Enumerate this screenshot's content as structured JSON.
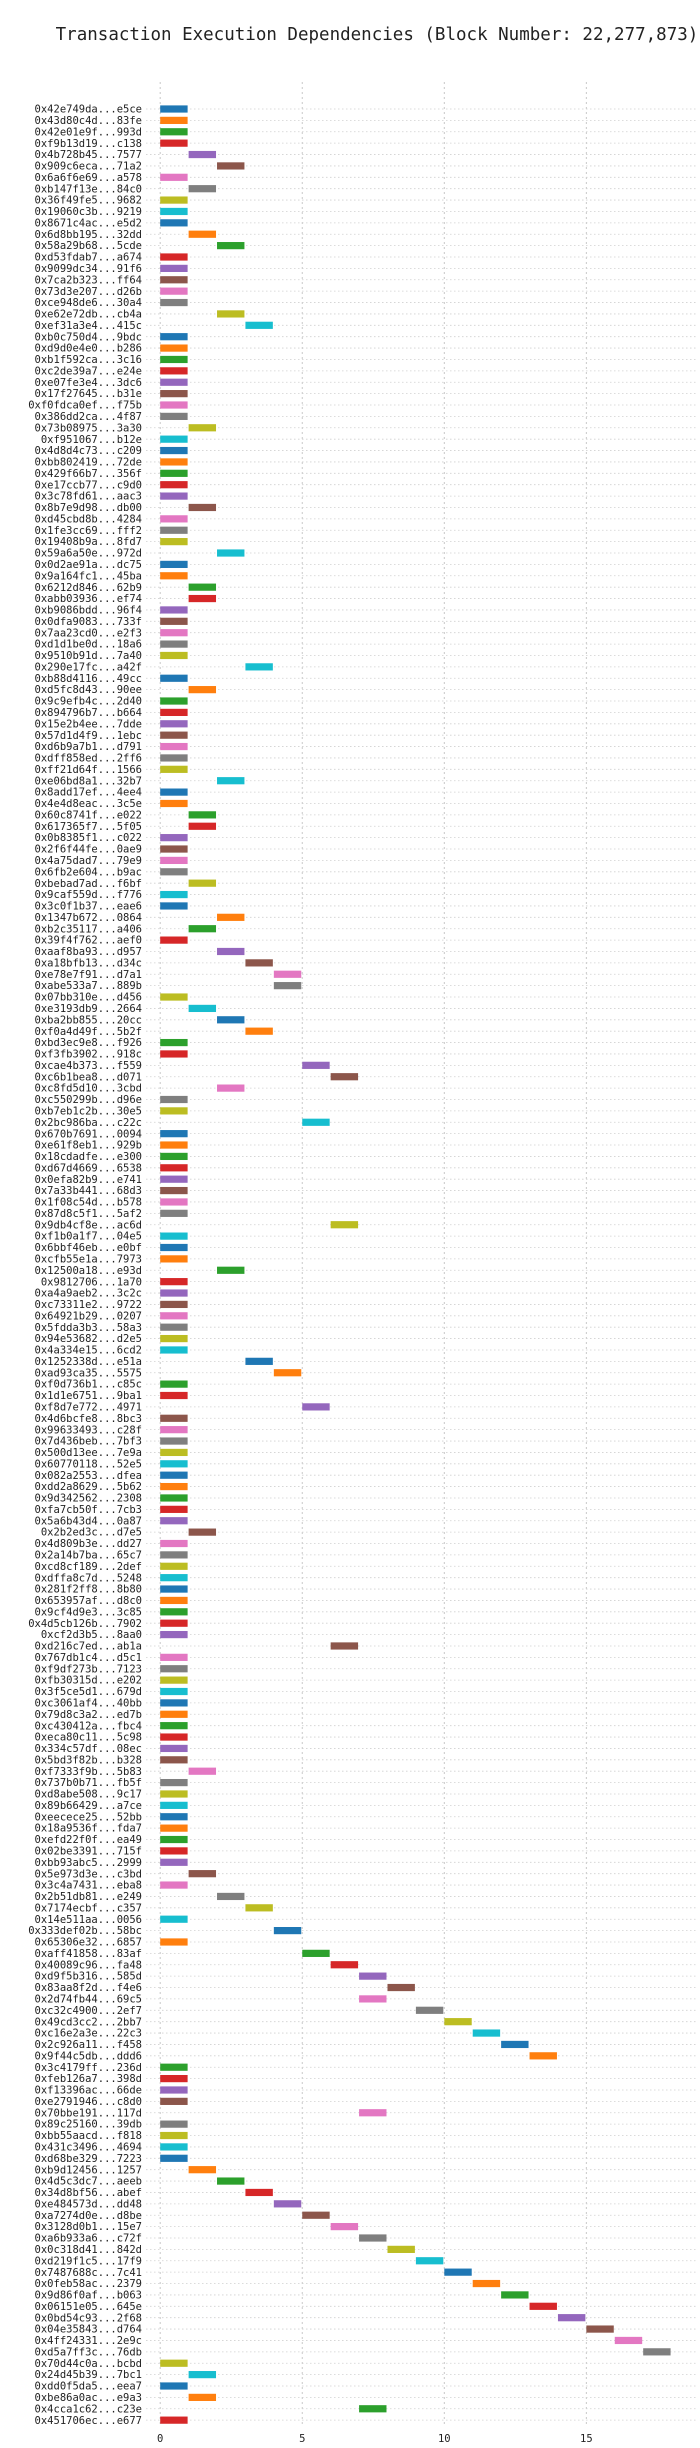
{
  "chart_data": {
    "type": "bar",
    "orientation": "horizontal",
    "title": "Transaction Execution Dependencies (Block Number: 22,277,873)",
    "xlabel": "",
    "ylabel": "",
    "xlim": [
      -0.5,
      19
    ],
    "xticks": [
      0,
      5,
      10,
      15
    ],
    "grid": true,
    "legend": "none",
    "bar_length": 1,
    "palette": [
      "#1f77b4",
      "#ff7f0e",
      "#2ca02c",
      "#d62728",
      "#9467bd",
      "#8c564b",
      "#e377c2",
      "#7f7f7f",
      "#bcbd22",
      "#17becf"
    ],
    "transactions": [
      {
        "label": "0x42e749da...e5ce",
        "x": 0
      },
      {
        "label": "0x43d80c4d...83fe",
        "x": 0
      },
      {
        "label": "0x42e01e9f...993d",
        "x": 0
      },
      {
        "label": "0xf9b13d19...c138",
        "x": 0
      },
      {
        "label": "0x4b728b45...7577",
        "x": 1
      },
      {
        "label": "0x909c6eca...71a2",
        "x": 2
      },
      {
        "label": "0x6a6f6e69...a578",
        "x": 0
      },
      {
        "label": "0xb147f13e...84c0",
        "x": 1
      },
      {
        "label": "0x36f49fe5...9682",
        "x": 0
      },
      {
        "label": "0x19060c3b...9219",
        "x": 0
      },
      {
        "label": "0x8671c4ac...e5d2",
        "x": 0
      },
      {
        "label": "0x6d8bb195...32dd",
        "x": 1
      },
      {
        "label": "0x58a29b68...5cde",
        "x": 2
      },
      {
        "label": "0xd53fdab7...a674",
        "x": 0
      },
      {
        "label": "0x9099dc34...91f6",
        "x": 0
      },
      {
        "label": "0x7ca2b323...ff64",
        "x": 0
      },
      {
        "label": "0x73d3e207...d26b",
        "x": 0
      },
      {
        "label": "0xce948de6...30a4",
        "x": 0
      },
      {
        "label": "0xe62e72db...cb4a",
        "x": 2
      },
      {
        "label": "0xef31a3e4...415c",
        "x": 3
      },
      {
        "label": "0xb0c750d4...9bdc",
        "x": 0
      },
      {
        "label": "0xd9d0e4e0...b286",
        "x": 0
      },
      {
        "label": "0xb1f592ca...3c16",
        "x": 0
      },
      {
        "label": "0xc2de39a7...e24e",
        "x": 0
      },
      {
        "label": "0xe07fe3e4...3dc6",
        "x": 0
      },
      {
        "label": "0x17f27645...b31e",
        "x": 0
      },
      {
        "label": "0xf0fdca0ef...f75b",
        "x": 0
      },
      {
        "label": "0x386dd2ca...4f87",
        "x": 0
      },
      {
        "label": "0x73b08975...3a30",
        "x": 1
      },
      {
        "label": "0xf951067...b12e",
        "x": 0
      },
      {
        "label": "0x4d8d4c73...c209",
        "x": 0
      },
      {
        "label": "0xbb802419...72de",
        "x": 0
      },
      {
        "label": "0x429f66b7...356f",
        "x": 0
      },
      {
        "label": "0xe17ccb77...c9d0",
        "x": 0
      },
      {
        "label": "0x3c78fd61...aac3",
        "x": 0
      },
      {
        "label": "0x8b7e9d98...db00",
        "x": 1
      },
      {
        "label": "0xd45cbd8b...4284",
        "x": 0
      },
      {
        "label": "0x1fe3cc69...fff2",
        "x": 0
      },
      {
        "label": "0x19408b9a...8fd7",
        "x": 0
      },
      {
        "label": "0x59a6a50e...972d",
        "x": 2
      },
      {
        "label": "0x0d2ae91a...dc75",
        "x": 0
      },
      {
        "label": "0x9a164fc1...45ba",
        "x": 0
      },
      {
        "label": "0x6212d846...62b9",
        "x": 1
      },
      {
        "label": "0xabb03936...ef74",
        "x": 1
      },
      {
        "label": "0xb9086bdd...96f4",
        "x": 0
      },
      {
        "label": "0x0dfa9083...733f",
        "x": 0
      },
      {
        "label": "0x7aa23cd0...e2f3",
        "x": 0
      },
      {
        "label": "0xd1d1be0d...18a6",
        "x": 0
      },
      {
        "label": "0x9510b91d...7a40",
        "x": 0
      },
      {
        "label": "0x290e17fc...a42f",
        "x": 3
      },
      {
        "label": "0xb88d4116...49cc",
        "x": 0
      },
      {
        "label": "0xd5fc8d43...90ee",
        "x": 1
      },
      {
        "label": "0x9c9efb4c...2d40",
        "x": 0
      },
      {
        "label": "0x894796b7...b664",
        "x": 0
      },
      {
        "label": "0x15e2b4ee...7dde",
        "x": 0
      },
      {
        "label": "0x57d1d4f9...1ebc",
        "x": 0
      },
      {
        "label": "0xd6b9a7b1...d791",
        "x": 0
      },
      {
        "label": "0xdff858ed...2ff6",
        "x": 0
      },
      {
        "label": "0xff21d64f...1566",
        "x": 0
      },
      {
        "label": "0xe06bd8a1...32b7",
        "x": 2
      },
      {
        "label": "0x8add17ef...4ee4",
        "x": 0
      },
      {
        "label": "0x4e4d8eac...3c5e",
        "x": 0
      },
      {
        "label": "0x60c8741f...e022",
        "x": 1
      },
      {
        "label": "0x617365f7...5f05",
        "x": 1
      },
      {
        "label": "0x0b8385f1...c022",
        "x": 0
      },
      {
        "label": "0x2f6f44fe...0ae9",
        "x": 0
      },
      {
        "label": "0x4a75dad7...79e9",
        "x": 0
      },
      {
        "label": "0x6fb2e604...b9ac",
        "x": 0
      },
      {
        "label": "0xbebad7ad...f6bf",
        "x": 1
      },
      {
        "label": "0x9caf559d...f776",
        "x": 0
      },
      {
        "label": "0x3c0f1b37...eae6",
        "x": 0
      },
      {
        "label": "0x1347b672...0864",
        "x": 2
      },
      {
        "label": "0xb2c35117...a406",
        "x": 1
      },
      {
        "label": "0x39f4f762...aef0",
        "x": 0
      },
      {
        "label": "0xaaf8ba93...d957",
        "x": 2
      },
      {
        "label": "0xa18bfb13...d34c",
        "x": 3
      },
      {
        "label": "0xe78e7f91...d7a1",
        "x": 4
      },
      {
        "label": "0xabe533a7...889b",
        "x": 4
      },
      {
        "label": "0x07bb310e...d456",
        "x": 0
      },
      {
        "label": "0xe3193db9...2664",
        "x": 1
      },
      {
        "label": "0xba2bb855...20cc",
        "x": 2
      },
      {
        "label": "0xf0a4d49f...5b2f",
        "x": 3
      },
      {
        "label": "0xbd3ec9e8...f926",
        "x": 0
      },
      {
        "label": "0xf3fb3902...918c",
        "x": 0
      },
      {
        "label": "0xcae4b373...f559",
        "x": 5
      },
      {
        "label": "0xc6b1bea8...d071",
        "x": 6
      },
      {
        "label": "0xc8fd5d10...3cbd",
        "x": 2
      },
      {
        "label": "0xc550299b...d96e",
        "x": 0
      },
      {
        "label": "0xb7eb1c2b...30e5",
        "x": 0
      },
      {
        "label": "0x2bc986ba...c22c",
        "x": 5
      },
      {
        "label": "0x670b7691...0094",
        "x": 0
      },
      {
        "label": "0xe61f8eb1...929b",
        "x": 0
      },
      {
        "label": "0x18cdadfe...e300",
        "x": 0
      },
      {
        "label": "0xd67d4669...6538",
        "x": 0
      },
      {
        "label": "0x0efa82b9...e741",
        "x": 0
      },
      {
        "label": "0x7a33b441...68d3",
        "x": 0
      },
      {
        "label": "0x1f08c54d...b578",
        "x": 0
      },
      {
        "label": "0x87d8c5f1...5af2",
        "x": 0
      },
      {
        "label": "0x9db4cf8e...ac6d",
        "x": 6
      },
      {
        "label": "0xf1b0a1f7...04e5",
        "x": 0
      },
      {
        "label": "0x6bbf46eb...e0bf",
        "x": 0
      },
      {
        "label": "0xcfb55e1a...7973",
        "x": 0
      },
      {
        "label": "0x12500a18...e93d",
        "x": 2
      },
      {
        "label": "0x9812706...1a70",
        "x": 0
      },
      {
        "label": "0xa4a9aeb2...3c2c",
        "x": 0
      },
      {
        "label": "0xc73311e2...9722",
        "x": 0
      },
      {
        "label": "0x64921b29...0207",
        "x": 0
      },
      {
        "label": "0x5fdda3b3...58a3",
        "x": 0
      },
      {
        "label": "0x94e53682...d2e5",
        "x": 0
      },
      {
        "label": "0x4a334e15...6cd2",
        "x": 0
      },
      {
        "label": "0x1252338d...e51a",
        "x": 3
      },
      {
        "label": "0xad93ca35...5575",
        "x": 4
      },
      {
        "label": "0xf0d736b1...c85c",
        "x": 0
      },
      {
        "label": "0x1d1e6751...9ba1",
        "x": 0
      },
      {
        "label": "0xf8d7e772...4971",
        "x": 5
      },
      {
        "label": "0x4d6bcfe8...8bc3",
        "x": 0
      },
      {
        "label": "0x99633493...c28f",
        "x": 0
      },
      {
        "label": "0x7d436beb...7bf3",
        "x": 0
      },
      {
        "label": "0x500d13ee...7e9a",
        "x": 0
      },
      {
        "label": "0x60770118...52e5",
        "x": 0
      },
      {
        "label": "0x082a2553...dfea",
        "x": 0
      },
      {
        "label": "0xdd2a8629...5b62",
        "x": 0
      },
      {
        "label": "0x9d342562...2308",
        "x": 0
      },
      {
        "label": "0xfa7cb50f...7cb3",
        "x": 0
      },
      {
        "label": "0x5a6b43d4...0a87",
        "x": 0
      },
      {
        "label": "0x2b2ed3c...d7e5",
        "x": 1
      },
      {
        "label": "0x4d809b3e...dd27",
        "x": 0
      },
      {
        "label": "0x2a14b7ba...65c7",
        "x": 0
      },
      {
        "label": "0xcd8cf189...2def",
        "x": 0
      },
      {
        "label": "0xdffa8c7d...5248",
        "x": 0
      },
      {
        "label": "0x281f2ff8...8b80",
        "x": 0
      },
      {
        "label": "0x653957af...d8c0",
        "x": 0
      },
      {
        "label": "0x9cf4d9e3...3c85",
        "x": 0
      },
      {
        "label": "0x4d5cb126b...7902",
        "x": 0
      },
      {
        "label": "0xcf2d3b5...8aa0",
        "x": 0
      },
      {
        "label": "0xd216c7ed...ab1a",
        "x": 6
      },
      {
        "label": "0x767db1c4...d5c1",
        "x": 0
      },
      {
        "label": "0xf9df273b...7123",
        "x": 0
      },
      {
        "label": "0xfb30315d...e202",
        "x": 0
      },
      {
        "label": "0x3f5ce5d1...679d",
        "x": 0
      },
      {
        "label": "0xc3061af4...40bb",
        "x": 0
      },
      {
        "label": "0x79d8c3a2...ed7b",
        "x": 0
      },
      {
        "label": "0xc430412a...fbc4",
        "x": 0
      },
      {
        "label": "0xeca80c11...5c98",
        "x": 0
      },
      {
        "label": "0x334c57df...08ec",
        "x": 0
      },
      {
        "label": "0x5bd3f82b...b328",
        "x": 0
      },
      {
        "label": "0xf7333f9b...5b83",
        "x": 1
      },
      {
        "label": "0x737b0b71...fb5f",
        "x": 0
      },
      {
        "label": "0xd8abe508...9c17",
        "x": 0
      },
      {
        "label": "0x89b66429...a7ce",
        "x": 0
      },
      {
        "label": "0xeecece25...52bb",
        "x": 0
      },
      {
        "label": "0x18a9536f...fda7",
        "x": 0
      },
      {
        "label": "0xefd22f0f...ea49",
        "x": 0
      },
      {
        "label": "0x02be3391...715f",
        "x": 0
      },
      {
        "label": "0xbb93abc5...2999",
        "x": 0
      },
      {
        "label": "0x5e973d3e...c3bd",
        "x": 1
      },
      {
        "label": "0x3c4a7431...eba8",
        "x": 0
      },
      {
        "label": "0x2b51db81...e249",
        "x": 2
      },
      {
        "label": "0x7174ecbf...c357",
        "x": 3
      },
      {
        "label": "0x14e511aa...0056",
        "x": 0
      },
      {
        "label": "0x333def02b...58bc",
        "x": 4
      },
      {
        "label": "0x65306e32...6857",
        "x": 0
      },
      {
        "label": "0xaff41858...83af",
        "x": 5
      },
      {
        "label": "0x40089c96...fa48",
        "x": 6
      },
      {
        "label": "0xd9f5b316...585d",
        "x": 7
      },
      {
        "label": "0x83aa8f2d...f4e6",
        "x": 8
      },
      {
        "label": "0x2d74fb44...69c5",
        "x": 7
      },
      {
        "label": "0xc32c4900...2ef7",
        "x": 9
      },
      {
        "label": "0x49cd3cc2...2bb7",
        "x": 10
      },
      {
        "label": "0xc16e2a3e...22c3",
        "x": 11
      },
      {
        "label": "0x2c926a11...f458",
        "x": 12
      },
      {
        "label": "0x9f44c5db...ddd6",
        "x": 13
      },
      {
        "label": "0x3c4179ff...236d",
        "x": 0
      },
      {
        "label": "0xfeb126a7...398d",
        "x": 0
      },
      {
        "label": "0xf13396ac...66de",
        "x": 0
      },
      {
        "label": "0xe2791946...c8d0",
        "x": 0
      },
      {
        "label": "0x70bbe191...117d",
        "x": 7
      },
      {
        "label": "0x89c25160...39db",
        "x": 0
      },
      {
        "label": "0xbb55aacd...f818",
        "x": 0
      },
      {
        "label": "0x431c3496...4694",
        "x": 0
      },
      {
        "label": "0xd68be329...7223",
        "x": 0
      },
      {
        "label": "0xb9d12456...1257",
        "x": 1
      },
      {
        "label": "0x4d5c3dc7...aeeb",
        "x": 2
      },
      {
        "label": "0x34d8bf56...abef",
        "x": 3
      },
      {
        "label": "0xe484573d...dd48",
        "x": 4
      },
      {
        "label": "0xa7274d0e...d8be",
        "x": 5
      },
      {
        "label": "0x3128d0b1...15e7",
        "x": 6
      },
      {
        "label": "0xa6b933a6...c72f",
        "x": 7
      },
      {
        "label": "0x0c318d41...842d",
        "x": 8
      },
      {
        "label": "0xd219f1c5...17f9",
        "x": 9
      },
      {
        "label": "0x7487688c...7c41",
        "x": 10
      },
      {
        "label": "0x0feb58ac...2379",
        "x": 11
      },
      {
        "label": "0x9d86f0af...b063",
        "x": 12
      },
      {
        "label": "0x06151e05...645e",
        "x": 13
      },
      {
        "label": "0x0bd54c93...2f68",
        "x": 14
      },
      {
        "label": "0x04e35843...d764",
        "x": 15
      },
      {
        "label": "0x4ff24331...2e9c",
        "x": 16
      },
      {
        "label": "0xd5a7ff3c...76db",
        "x": 17
      },
      {
        "label": "0x70d44c0a...bcbd",
        "x": 0
      },
      {
        "label": "0x24d45b39...7bc1",
        "x": 1
      },
      {
        "label": "0xdd0f5da5...eea7",
        "x": 0
      },
      {
        "label": "0xbe86a0ac...e9a3",
        "x": 1
      },
      {
        "label": "0x4cca1c62...c23e",
        "x": 7
      },
      {
        "label": "0x451706ec...e677",
        "x": 0
      }
    ]
  }
}
